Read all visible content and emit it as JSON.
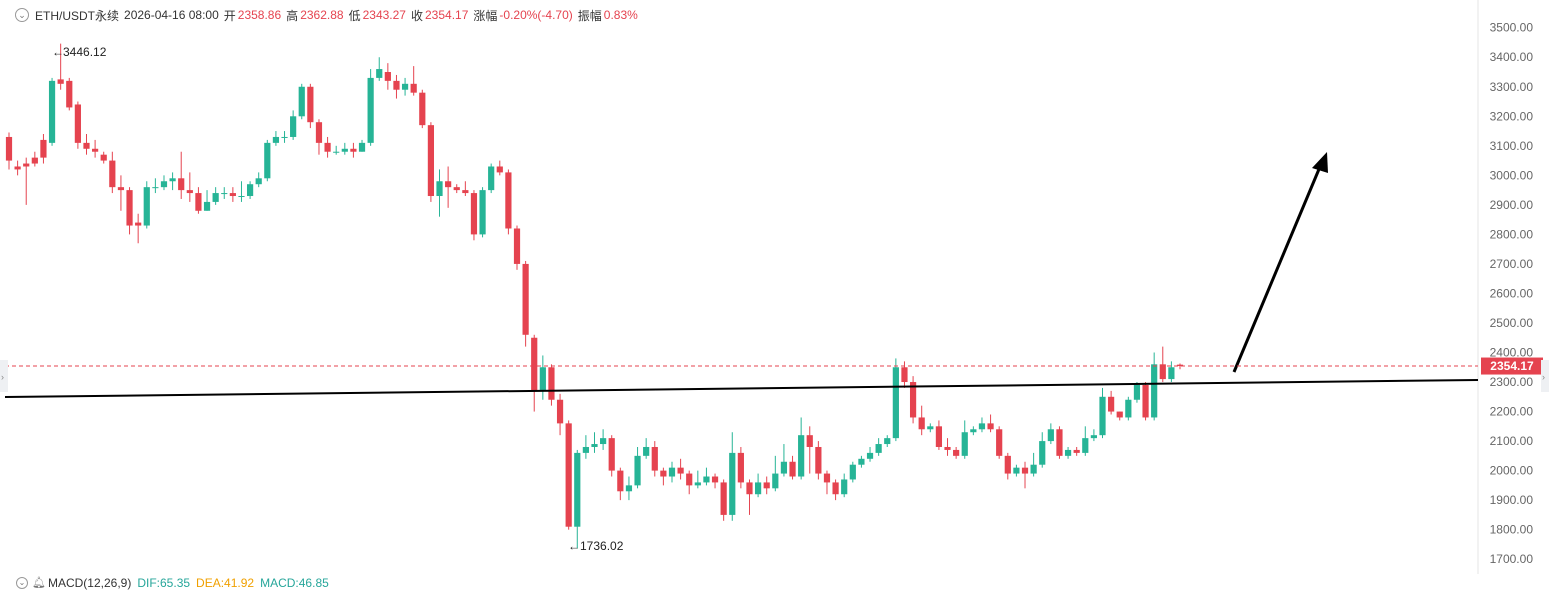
{
  "header": {
    "symbol": "ETH/USDT永续",
    "datetime": "2026-04-16 08:00",
    "open_label": "开",
    "open": "2358.86",
    "high_label": "高",
    "high": "2362.88",
    "low_label": "低",
    "low": "2343.27",
    "close_label": "收",
    "close": "2354.17",
    "change_label": "涨幅",
    "change": "-0.20%(-4.70)",
    "amp_label": "振幅",
    "amp": "0.83%"
  },
  "footer": {
    "indicator": "MACD(12,26,9)",
    "dif": "DIF:65.35",
    "dea": "DEA:41.92",
    "macd": "MACD:46.85"
  },
  "colors": {
    "up": "#26b496",
    "down": "#e5434f",
    "line": "#000000",
    "price_tag": "#e5434f"
  },
  "chart_data": {
    "type": "candlestick",
    "ylim": [
      1660,
      3560
    ],
    "y_ticks": [
      "3500.00",
      "3400.00",
      "3300.00",
      "3200.00",
      "3100.00",
      "3000.00",
      "2900.00",
      "2800.00",
      "2700.00",
      "2600.00",
      "2500.00",
      "2400.00",
      "2300.00",
      "2200.00",
      "2100.00",
      "2000.00",
      "1900.00",
      "1800.00",
      "1700.00"
    ],
    "last_price": "2354.17",
    "max_label": "3446.12",
    "min_label": "1736.02",
    "candles": [
      [
        3130,
        3050,
        3145,
        3020
      ],
      [
        3030,
        3020,
        3050,
        3000
      ],
      [
        3040,
        3030,
        3060,
        2900
      ],
      [
        3060,
        3040,
        3080,
        3030
      ],
      [
        3120,
        3060,
        3140,
        3040
      ],
      [
        3110,
        3320,
        3330,
        3100
      ],
      [
        3325,
        3310,
        3446.12,
        3290
      ],
      [
        3320,
        3230,
        3330,
        3220
      ],
      [
        3240,
        3110,
        3250,
        3090
      ],
      [
        3110,
        3090,
        3140,
        3070
      ],
      [
        3090,
        3080,
        3120,
        3060
      ],
      [
        3070,
        3050,
        3080,
        3040
      ],
      [
        3050,
        2960,
        3080,
        2940
      ],
      [
        2960,
        2950,
        3000,
        2880
      ],
      [
        2950,
        2830,
        2960,
        2800
      ],
      [
        2840,
        2830,
        2870,
        2770
      ],
      [
        2830,
        2960,
        2980,
        2820
      ],
      [
        2960,
        2960,
        2990,
        2940
      ],
      [
        2960,
        2980,
        3000,
        2950
      ],
      [
        2980,
        2990,
        3010,
        2950
      ],
      [
        2990,
        2950,
        3080,
        2920
      ],
      [
        2950,
        2940,
        3010,
        2910
      ],
      [
        2940,
        2880,
        2960,
        2870
      ],
      [
        2880,
        2910,
        2950,
        2880
      ],
      [
        2910,
        2940,
        2960,
        2900
      ],
      [
        2940,
        2940,
        2960,
        2920
      ],
      [
        2940,
        2930,
        2960,
        2910
      ],
      [
        2930,
        2930,
        2980,
        2910
      ],
      [
        2930,
        2970,
        2980,
        2920
      ],
      [
        2970,
        2990,
        3010,
        2960
      ],
      [
        2990,
        3110,
        3120,
        2980
      ],
      [
        3110,
        3130,
        3150,
        3100
      ],
      [
        3130,
        3130,
        3150,
        3110
      ],
      [
        3130,
        3200,
        3220,
        3120
      ],
      [
        3200,
        3300,
        3310,
        3190
      ],
      [
        3300,
        3180,
        3310,
        3160
      ],
      [
        3180,
        3110,
        3190,
        3070
      ],
      [
        3110,
        3080,
        3130,
        3060
      ],
      [
        3080,
        3080,
        3100,
        3070
      ],
      [
        3080,
        3090,
        3110,
        3070
      ],
      [
        3090,
        3080,
        3110,
        3060
      ],
      [
        3080,
        3110,
        3120,
        3080
      ],
      [
        3110,
        3330,
        3360,
        3100
      ],
      [
        3330,
        3360,
        3400,
        3320
      ],
      [
        3350,
        3320,
        3380,
        3290
      ],
      [
        3320,
        3290,
        3340,
        3260
      ],
      [
        3290,
        3310,
        3330,
        3270
      ],
      [
        3310,
        3280,
        3370,
        3270
      ],
      [
        3280,
        3170,
        3290,
        3160
      ],
      [
        3170,
        2930,
        3180,
        2910
      ],
      [
        2930,
        2980,
        3020,
        2860
      ],
      [
        2980,
        2960,
        3030,
        2890
      ],
      [
        2960,
        2950,
        2970,
        2940
      ],
      [
        2950,
        2940,
        2980,
        2930
      ],
      [
        2940,
        2800,
        2950,
        2780
      ],
      [
        2800,
        2950,
        2960,
        2790
      ],
      [
        2950,
        3030,
        3040,
        2940
      ],
      [
        3030,
        3010,
        3050,
        3000
      ],
      [
        3010,
        2820,
        3020,
        2800
      ],
      [
        2820,
        2700,
        2830,
        2680
      ],
      [
        2700,
        2460,
        2710,
        2420
      ],
      [
        2450,
        2270,
        2460,
        2200
      ],
      [
        2270,
        2350,
        2390,
        2240
      ],
      [
        2350,
        2240,
        2360,
        2220
      ],
      [
        2240,
        2160,
        2260,
        2120
      ],
      [
        2160,
        1810,
        2170,
        1800
      ],
      [
        1810,
        2060,
        2070,
        1736.02
      ],
      [
        2060,
        2080,
        2120,
        2040
      ],
      [
        2080,
        2090,
        2130,
        2060
      ],
      [
        2090,
        2110,
        2140,
        2070
      ],
      [
        2110,
        2000,
        2120,
        1980
      ],
      [
        2000,
        1930,
        2010,
        1900
      ],
      [
        1930,
        1950,
        1980,
        1900
      ],
      [
        1950,
        2050,
        2080,
        1940
      ],
      [
        2050,
        2080,
        2110,
        2040
      ],
      [
        2080,
        2000,
        2100,
        1980
      ],
      [
        2000,
        1980,
        2010,
        1950
      ],
      [
        1980,
        2010,
        2030,
        1960
      ],
      [
        2010,
        1990,
        2040,
        1970
      ],
      [
        1990,
        1950,
        2000,
        1920
      ],
      [
        1950,
        1960,
        2000,
        1940
      ],
      [
        1960,
        1980,
        2010,
        1950
      ],
      [
        1980,
        1960,
        1990,
        1940
      ],
      [
        1960,
        1850,
        1970,
        1830
      ],
      [
        1850,
        2060,
        2130,
        1830
      ],
      [
        2060,
        1960,
        2080,
        1940
      ],
      [
        1960,
        1920,
        1970,
        1850
      ],
      [
        1920,
        1960,
        1990,
        1910
      ],
      [
        1960,
        1940,
        1980,
        1920
      ],
      [
        1940,
        1990,
        2050,
        1930
      ],
      [
        1990,
        2030,
        2090,
        1980
      ],
      [
        2030,
        1980,
        2050,
        1970
      ],
      [
        1980,
        2120,
        2180,
        1970
      ],
      [
        2120,
        2080,
        2150,
        1990
      ],
      [
        2080,
        1990,
        2100,
        1970
      ],
      [
        1990,
        1960,
        2000,
        1920
      ],
      [
        1960,
        1920,
        1970,
        1900
      ],
      [
        1920,
        1970,
        1990,
        1910
      ],
      [
        1970,
        2020,
        2030,
        1960
      ],
      [
        2020,
        2040,
        2050,
        2010
      ],
      [
        2040,
        2060,
        2080,
        2030
      ],
      [
        2060,
        2090,
        2110,
        2050
      ],
      [
        2090,
        2110,
        2120,
        2080
      ],
      [
        2110,
        2350,
        2380,
        2100
      ],
      [
        2350,
        2300,
        2370,
        2280
      ],
      [
        2300,
        2180,
        2320,
        2160
      ],
      [
        2180,
        2140,
        2220,
        2120
      ],
      [
        2140,
        2150,
        2160,
        2130
      ],
      [
        2150,
        2080,
        2170,
        2070
      ],
      [
        2080,
        2070,
        2110,
        2050
      ],
      [
        2070,
        2050,
        2080,
        2040
      ],
      [
        2050,
        2130,
        2170,
        2040
      ],
      [
        2130,
        2140,
        2150,
        2120
      ],
      [
        2140,
        2160,
        2180,
        2130
      ],
      [
        2160,
        2140,
        2190,
        2130
      ],
      [
        2140,
        2050,
        2150,
        2040
      ],
      [
        2050,
        1990,
        2060,
        1970
      ],
      [
        1990,
        2010,
        2020,
        1980
      ],
      [
        2010,
        1990,
        2030,
        1940
      ],
      [
        1990,
        2020,
        2060,
        1980
      ],
      [
        2020,
        2100,
        2130,
        2010
      ],
      [
        2100,
        2140,
        2160,
        2090
      ],
      [
        2140,
        2050,
        2150,
        2040
      ],
      [
        2050,
        2070,
        2080,
        2040
      ],
      [
        2070,
        2060,
        2080,
        2050
      ],
      [
        2060,
        2110,
        2150,
        2050
      ],
      [
        2110,
        2120,
        2140,
        2100
      ],
      [
        2120,
        2250,
        2280,
        2110
      ],
      [
        2250,
        2200,
        2270,
        2190
      ],
      [
        2200,
        2180,
        2200,
        2170
      ],
      [
        2180,
        2240,
        2250,
        2170
      ],
      [
        2240,
        2290,
        2300,
        2230
      ],
      [
        2290,
        2180,
        2300,
        2170
      ],
      [
        2180,
        2360,
        2400,
        2170
      ],
      [
        2360,
        2310,
        2420,
        2300
      ],
      [
        2310,
        2350,
        2370,
        2300
      ],
      [
        2358.86,
        2354.17,
        2362.88,
        2343.27
      ]
    ]
  }
}
